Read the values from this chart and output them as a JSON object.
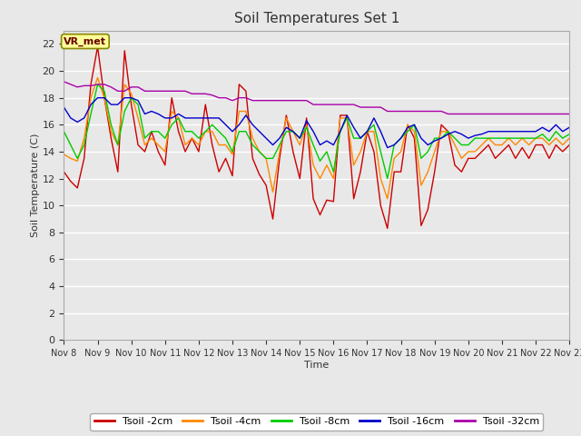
{
  "title": "Soil Temperatures Set 1",
  "xlabel": "Time",
  "ylabel": "Soil Temperature (C)",
  "xlim": [
    0,
    15
  ],
  "ylim": [
    0,
    23
  ],
  "yticks": [
    0,
    2,
    4,
    6,
    8,
    10,
    12,
    14,
    16,
    18,
    20,
    22
  ],
  "xtick_labels": [
    "Nov 8",
    "Nov 9",
    "Nov 10",
    "Nov 11",
    "Nov 12",
    "Nov 13",
    "Nov 14",
    "Nov 15",
    "Nov 16",
    "Nov 17",
    "Nov 18",
    "Nov 19",
    "Nov 20",
    "Nov 21",
    "Nov 22",
    "Nov 23"
  ],
  "background_color": "#e8e8e8",
  "plot_bg_color": "#e8e8e8",
  "grid_color": "#ffffff",
  "annotation_text": "VR_met",
  "colors": {
    "Tsoil -2cm": "#cc0000",
    "Tsoil -4cm": "#ff8800",
    "Tsoil -8cm": "#00cc00",
    "Tsoil -16cm": "#0000cc",
    "Tsoil -32cm": "#aa00aa"
  },
  "tsoil_2cm": [
    12.5,
    11.8,
    11.3,
    13.5,
    19.0,
    21.8,
    18.0,
    15.0,
    12.5,
    21.5,
    17.5,
    14.5,
    14.0,
    15.5,
    14.0,
    13.0,
    18.0,
    15.5,
    14.0,
    15.0,
    14.0,
    17.5,
    14.5,
    12.5,
    13.5,
    12.2,
    19.0,
    18.5,
    13.5,
    12.3,
    11.5,
    9.0,
    13.5,
    16.7,
    14.0,
    12.0,
    16.5,
    10.5,
    9.3,
    10.4,
    10.3,
    16.7,
    16.7,
    10.5,
    12.5,
    15.5,
    14.0,
    10.0,
    8.3,
    12.5,
    12.5,
    16.0,
    15.0,
    8.5,
    9.7,
    12.5,
    16.0,
    15.5,
    13.0,
    12.5,
    13.5,
    13.5,
    14.0,
    14.5,
    13.5,
    14.0,
    14.5,
    13.5,
    14.3,
    13.5,
    14.5,
    14.5,
    13.5,
    14.5,
    14.0,
    14.5
  ],
  "tsoil_4cm": [
    13.8,
    13.5,
    13.3,
    15.0,
    18.0,
    19.5,
    18.0,
    15.5,
    14.5,
    19.0,
    18.3,
    16.5,
    14.5,
    15.0,
    14.5,
    14.0,
    17.0,
    16.5,
    14.5,
    15.0,
    14.5,
    15.5,
    15.5,
    14.5,
    14.5,
    13.8,
    17.0,
    17.0,
    15.0,
    14.0,
    13.5,
    11.0,
    14.0,
    16.5,
    15.5,
    14.5,
    16.0,
    13.0,
    12.0,
    13.0,
    12.0,
    16.5,
    16.5,
    13.0,
    14.0,
    15.5,
    15.5,
    12.0,
    10.5,
    13.5,
    14.0,
    16.0,
    15.5,
    11.5,
    12.5,
    14.0,
    15.5,
    15.5,
    14.5,
    13.5,
    14.0,
    14.0,
    14.5,
    15.0,
    14.5,
    14.5,
    15.0,
    14.5,
    15.0,
    14.5,
    15.0,
    15.0,
    14.5,
    15.0,
    14.5,
    15.0
  ],
  "tsoil_8cm": [
    15.5,
    14.5,
    13.5,
    14.5,
    16.8,
    19.0,
    18.5,
    16.0,
    14.5,
    17.0,
    18.0,
    17.5,
    15.0,
    15.5,
    15.5,
    15.0,
    16.0,
    16.5,
    15.5,
    15.5,
    15.0,
    15.5,
    16.0,
    15.5,
    15.0,
    14.0,
    15.5,
    15.5,
    14.5,
    14.0,
    13.5,
    13.5,
    14.5,
    15.5,
    15.5,
    15.0,
    15.8,
    14.5,
    13.3,
    14.0,
    12.5,
    15.5,
    16.5,
    15.0,
    15.0,
    15.5,
    16.0,
    14.0,
    12.0,
    14.5,
    15.0,
    15.5,
    16.0,
    13.5,
    14.0,
    15.0,
    15.0,
    15.5,
    15.0,
    14.5,
    14.5,
    15.0,
    15.0,
    15.0,
    15.0,
    15.0,
    15.0,
    15.0,
    15.0,
    15.0,
    15.0,
    15.3,
    14.8,
    15.5,
    15.0,
    15.3
  ],
  "tsoil_16cm": [
    17.3,
    16.5,
    16.2,
    16.5,
    17.5,
    18.0,
    18.0,
    17.5,
    17.5,
    18.0,
    18.0,
    17.8,
    16.8,
    17.0,
    16.8,
    16.5,
    16.5,
    16.8,
    16.5,
    16.5,
    16.5,
    16.5,
    16.5,
    16.5,
    16.0,
    15.5,
    16.0,
    16.7,
    16.0,
    15.5,
    15.0,
    14.5,
    15.0,
    15.8,
    15.5,
    15.0,
    16.3,
    15.5,
    14.5,
    14.8,
    14.5,
    15.5,
    16.7,
    15.8,
    15.0,
    15.5,
    16.5,
    15.5,
    14.3,
    14.5,
    15.0,
    15.8,
    16.0,
    15.0,
    14.5,
    14.8,
    15.0,
    15.3,
    15.5,
    15.3,
    15.0,
    15.2,
    15.3,
    15.5,
    15.5,
    15.5,
    15.5,
    15.5,
    15.5,
    15.5,
    15.5,
    15.8,
    15.5,
    16.0,
    15.5,
    15.8
  ],
  "tsoil_32cm": [
    19.2,
    19.0,
    18.8,
    18.9,
    18.9,
    19.0,
    19.0,
    18.8,
    18.5,
    18.5,
    18.8,
    18.8,
    18.5,
    18.5,
    18.5,
    18.5,
    18.5,
    18.5,
    18.5,
    18.3,
    18.3,
    18.3,
    18.2,
    18.0,
    18.0,
    17.8,
    18.0,
    18.0,
    17.8,
    17.8,
    17.8,
    17.8,
    17.8,
    17.8,
    17.8,
    17.8,
    17.8,
    17.5,
    17.5,
    17.5,
    17.5,
    17.5,
    17.5,
    17.5,
    17.3,
    17.3,
    17.3,
    17.3,
    17.0,
    17.0,
    17.0,
    17.0,
    17.0,
    17.0,
    17.0,
    17.0,
    17.0,
    16.8,
    16.8,
    16.8,
    16.8,
    16.8,
    16.8,
    16.8,
    16.8,
    16.8,
    16.8,
    16.8,
    16.8,
    16.8,
    16.8,
    16.8,
    16.8,
    16.8,
    16.8,
    16.8
  ]
}
